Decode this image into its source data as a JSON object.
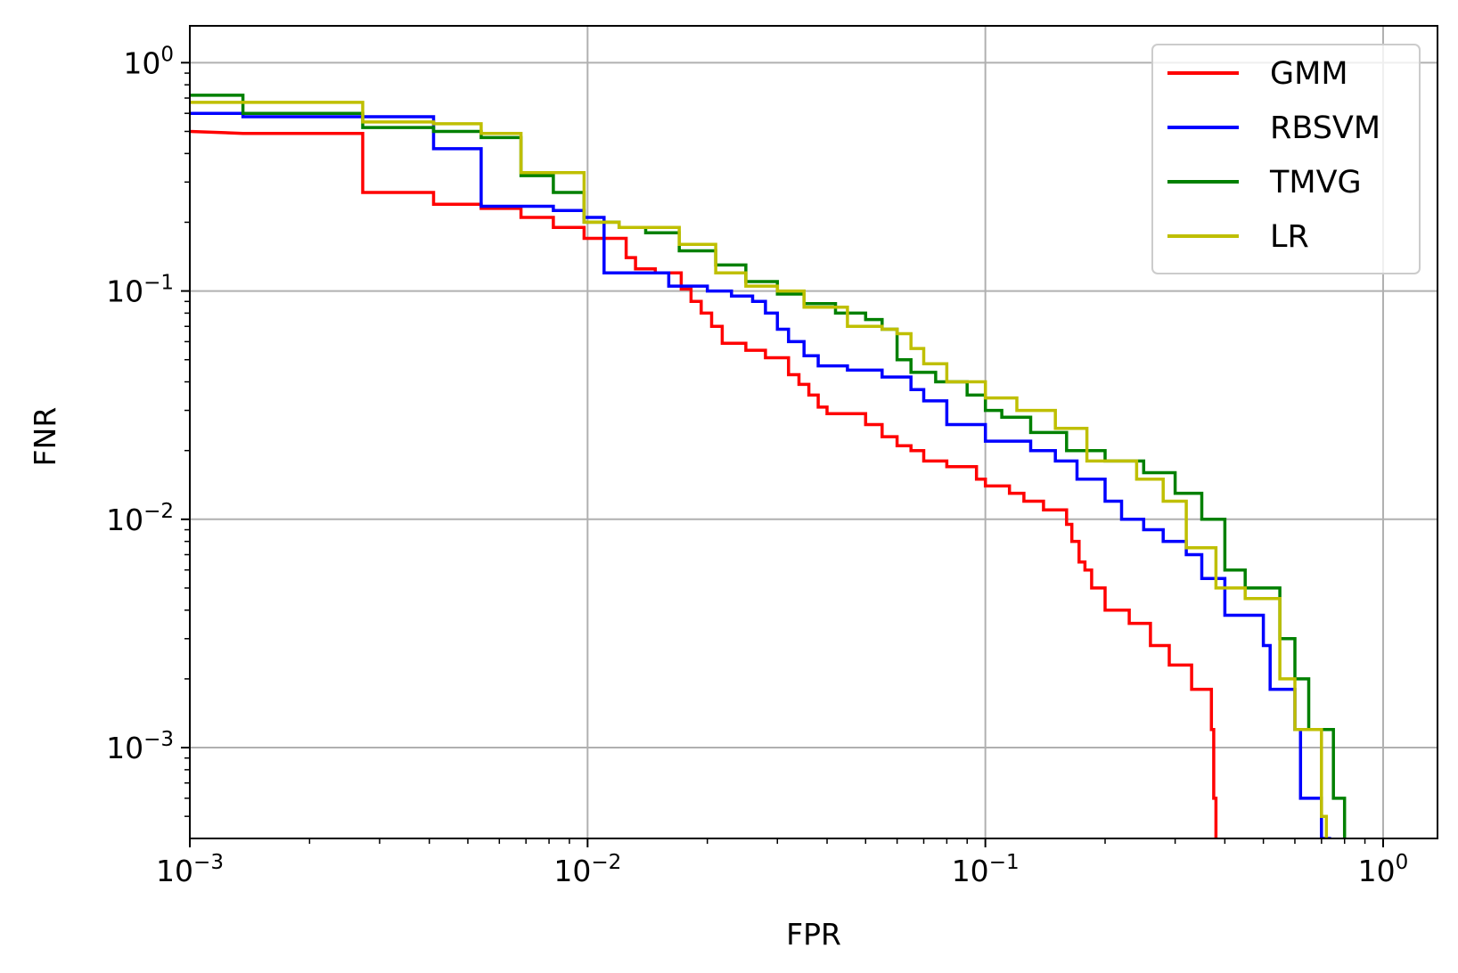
{
  "chart_data": {
    "type": "line",
    "xlabel": "FPR",
    "ylabel": "FNR",
    "xscale": "log",
    "yscale": "log",
    "xlim": [
      0.001,
      1.37
    ],
    "ylim": [
      0.0004,
      1.45
    ],
    "grid": true,
    "legend_position": "top-right",
    "x_ticks": [
      {
        "value": 0.001,
        "base": "10",
        "exp": "−3"
      },
      {
        "value": 0.01,
        "base": "10",
        "exp": "−2"
      },
      {
        "value": 0.1,
        "base": "10",
        "exp": "−1"
      },
      {
        "value": 1,
        "base": "10",
        "exp": "0"
      }
    ],
    "y_ticks": [
      {
        "value": 1,
        "base": "10",
        "exp": "0"
      },
      {
        "value": 0.1,
        "base": "10",
        "exp": "−1"
      },
      {
        "value": 0.01,
        "base": "10",
        "exp": "−2"
      },
      {
        "value": 0.001,
        "base": "10",
        "exp": "−3"
      }
    ],
    "series": [
      {
        "name": "GMM",
        "color": "#ff0000",
        "x": [
          0.001,
          0.00136,
          0.00272,
          0.00272,
          0.0041,
          0.0041,
          0.0054,
          0.0054,
          0.0068,
          0.0068,
          0.0082,
          0.0082,
          0.0098,
          0.0098,
          0.0125,
          0.0125,
          0.0132,
          0.0132,
          0.0148,
          0.0148,
          0.0172,
          0.0172,
          0.0182,
          0.0182,
          0.0193,
          0.0193,
          0.0205,
          0.0205,
          0.0218,
          0.0218,
          0.025,
          0.025,
          0.028,
          0.028,
          0.032,
          0.032,
          0.034,
          0.034,
          0.036,
          0.036,
          0.038,
          0.038,
          0.04,
          0.04,
          0.05,
          0.05,
          0.055,
          0.055,
          0.06,
          0.06,
          0.065,
          0.065,
          0.07,
          0.07,
          0.08,
          0.08,
          0.095,
          0.095,
          0.1,
          0.1,
          0.115,
          0.115,
          0.125,
          0.125,
          0.14,
          0.14,
          0.16,
          0.16,
          0.165,
          0.165,
          0.172,
          0.172,
          0.178,
          0.178,
          0.185,
          0.185,
          0.2,
          0.2,
          0.23,
          0.23,
          0.26,
          0.26,
          0.29,
          0.29,
          0.33,
          0.33,
          0.37,
          0.37,
          0.375,
          0.375,
          0.38,
          0.38
        ],
        "y": [
          0.5,
          0.49,
          0.49,
          0.27,
          0.27,
          0.24,
          0.24,
          0.23,
          0.23,
          0.21,
          0.21,
          0.19,
          0.19,
          0.17,
          0.17,
          0.14,
          0.14,
          0.125,
          0.125,
          0.12,
          0.12,
          0.102,
          0.102,
          0.09,
          0.09,
          0.08,
          0.08,
          0.07,
          0.07,
          0.059,
          0.059,
          0.055,
          0.055,
          0.051,
          0.051,
          0.043,
          0.043,
          0.039,
          0.039,
          0.035,
          0.035,
          0.031,
          0.031,
          0.029,
          0.029,
          0.026,
          0.026,
          0.023,
          0.023,
          0.021,
          0.021,
          0.02,
          0.02,
          0.018,
          0.018,
          0.017,
          0.017,
          0.015,
          0.015,
          0.014,
          0.014,
          0.013,
          0.013,
          0.012,
          0.012,
          0.011,
          0.011,
          0.0095,
          0.0095,
          0.008,
          0.008,
          0.0065,
          0.0065,
          0.006,
          0.006,
          0.005,
          0.005,
          0.004,
          0.004,
          0.0035,
          0.0035,
          0.0028,
          0.0028,
          0.0023,
          0.0023,
          0.0018,
          0.0018,
          0.0012,
          0.0012,
          0.0006,
          0.0006,
          0.0004
        ]
      },
      {
        "name": "RBSVM",
        "color": "#0000ff",
        "x": [
          0.001,
          0.00136,
          0.00136,
          0.0041,
          0.0041,
          0.0054,
          0.0054,
          0.0082,
          0.0082,
          0.0098,
          0.0098,
          0.011,
          0.011,
          0.016,
          0.016,
          0.02,
          0.02,
          0.023,
          0.023,
          0.026,
          0.026,
          0.028,
          0.028,
          0.03,
          0.03,
          0.032,
          0.032,
          0.035,
          0.035,
          0.038,
          0.038,
          0.045,
          0.045,
          0.055,
          0.055,
          0.065,
          0.065,
          0.07,
          0.07,
          0.08,
          0.08,
          0.1,
          0.1,
          0.13,
          0.13,
          0.15,
          0.15,
          0.17,
          0.17,
          0.2,
          0.2,
          0.22,
          0.22,
          0.25,
          0.25,
          0.28,
          0.28,
          0.32,
          0.32,
          0.35,
          0.35,
          0.4,
          0.4,
          0.5,
          0.5,
          0.52,
          0.52,
          0.6,
          0.6,
          0.62,
          0.62,
          0.7,
          0.7,
          0.74,
          0.74
        ],
        "y": [
          0.6,
          0.6,
          0.58,
          0.58,
          0.42,
          0.42,
          0.235,
          0.235,
          0.225,
          0.225,
          0.21,
          0.21,
          0.12,
          0.12,
          0.105,
          0.105,
          0.1,
          0.1,
          0.095,
          0.095,
          0.09,
          0.09,
          0.08,
          0.08,
          0.068,
          0.068,
          0.06,
          0.06,
          0.052,
          0.052,
          0.047,
          0.047,
          0.045,
          0.045,
          0.042,
          0.042,
          0.037,
          0.037,
          0.033,
          0.033,
          0.026,
          0.026,
          0.022,
          0.022,
          0.02,
          0.02,
          0.018,
          0.018,
          0.015,
          0.015,
          0.012,
          0.012,
          0.01,
          0.01,
          0.009,
          0.009,
          0.008,
          0.008,
          0.007,
          0.007,
          0.0055,
          0.0055,
          0.0038,
          0.0038,
          0.0028,
          0.0028,
          0.0018,
          0.0018,
          0.0012,
          0.0012,
          0.0006,
          0.0006,
          0.0004,
          0.0004,
          0.0004
        ]
      },
      {
        "name": "TMVG",
        "color": "#008000",
        "x": [
          0.001,
          0.00136,
          0.00136,
          0.00272,
          0.00272,
          0.0041,
          0.0041,
          0.0054,
          0.0054,
          0.0068,
          0.0068,
          0.0082,
          0.0082,
          0.0098,
          0.0098,
          0.012,
          0.012,
          0.014,
          0.014,
          0.017,
          0.017,
          0.021,
          0.021,
          0.025,
          0.025,
          0.03,
          0.03,
          0.035,
          0.035,
          0.042,
          0.042,
          0.05,
          0.05,
          0.055,
          0.055,
          0.06,
          0.06,
          0.065,
          0.065,
          0.075,
          0.075,
          0.09,
          0.09,
          0.1,
          0.1,
          0.11,
          0.11,
          0.13,
          0.13,
          0.16,
          0.16,
          0.2,
          0.2,
          0.25,
          0.25,
          0.3,
          0.3,
          0.35,
          0.35,
          0.4,
          0.4,
          0.45,
          0.45,
          0.55,
          0.55,
          0.6,
          0.6,
          0.65,
          0.65,
          0.75,
          0.75,
          0.8,
          0.8
        ],
        "y": [
          0.72,
          0.72,
          0.6,
          0.6,
          0.52,
          0.52,
          0.5,
          0.5,
          0.47,
          0.47,
          0.32,
          0.32,
          0.27,
          0.27,
          0.2,
          0.2,
          0.19,
          0.19,
          0.18,
          0.18,
          0.15,
          0.15,
          0.13,
          0.13,
          0.11,
          0.11,
          0.097,
          0.097,
          0.088,
          0.088,
          0.08,
          0.08,
          0.075,
          0.075,
          0.068,
          0.068,
          0.05,
          0.05,
          0.044,
          0.044,
          0.04,
          0.04,
          0.035,
          0.035,
          0.03,
          0.03,
          0.028,
          0.028,
          0.024,
          0.024,
          0.02,
          0.02,
          0.018,
          0.018,
          0.016,
          0.016,
          0.013,
          0.013,
          0.01,
          0.01,
          0.006,
          0.006,
          0.005,
          0.005,
          0.003,
          0.003,
          0.002,
          0.002,
          0.0012,
          0.0012,
          0.0006,
          0.0006,
          0.0004
        ]
      },
      {
        "name": "LR",
        "color": "#bfbf00",
        "x": [
          0.001,
          0.00272,
          0.00272,
          0.0041,
          0.0041,
          0.0054,
          0.0054,
          0.0068,
          0.0068,
          0.0098,
          0.0098,
          0.012,
          0.012,
          0.017,
          0.017,
          0.021,
          0.021,
          0.025,
          0.025,
          0.03,
          0.03,
          0.035,
          0.035,
          0.045,
          0.045,
          0.055,
          0.055,
          0.06,
          0.06,
          0.065,
          0.065,
          0.07,
          0.07,
          0.08,
          0.08,
          0.1,
          0.1,
          0.12,
          0.12,
          0.15,
          0.15,
          0.18,
          0.18,
          0.24,
          0.24,
          0.28,
          0.28,
          0.32,
          0.32,
          0.38,
          0.38,
          0.45,
          0.45,
          0.55,
          0.55,
          0.6,
          0.6,
          0.7,
          0.7,
          0.72,
          0.72
        ],
        "y": [
          0.67,
          0.67,
          0.55,
          0.55,
          0.54,
          0.54,
          0.49,
          0.49,
          0.33,
          0.33,
          0.2,
          0.2,
          0.19,
          0.19,
          0.16,
          0.16,
          0.12,
          0.12,
          0.105,
          0.105,
          0.1,
          0.1,
          0.085,
          0.085,
          0.07,
          0.07,
          0.068,
          0.068,
          0.065,
          0.065,
          0.056,
          0.056,
          0.048,
          0.048,
          0.04,
          0.04,
          0.034,
          0.034,
          0.03,
          0.03,
          0.025,
          0.025,
          0.018,
          0.018,
          0.015,
          0.015,
          0.012,
          0.012,
          0.0075,
          0.0075,
          0.005,
          0.005,
          0.0045,
          0.0045,
          0.002,
          0.002,
          0.0012,
          0.0012,
          0.0005,
          0.0005,
          0.0004
        ]
      }
    ]
  }
}
